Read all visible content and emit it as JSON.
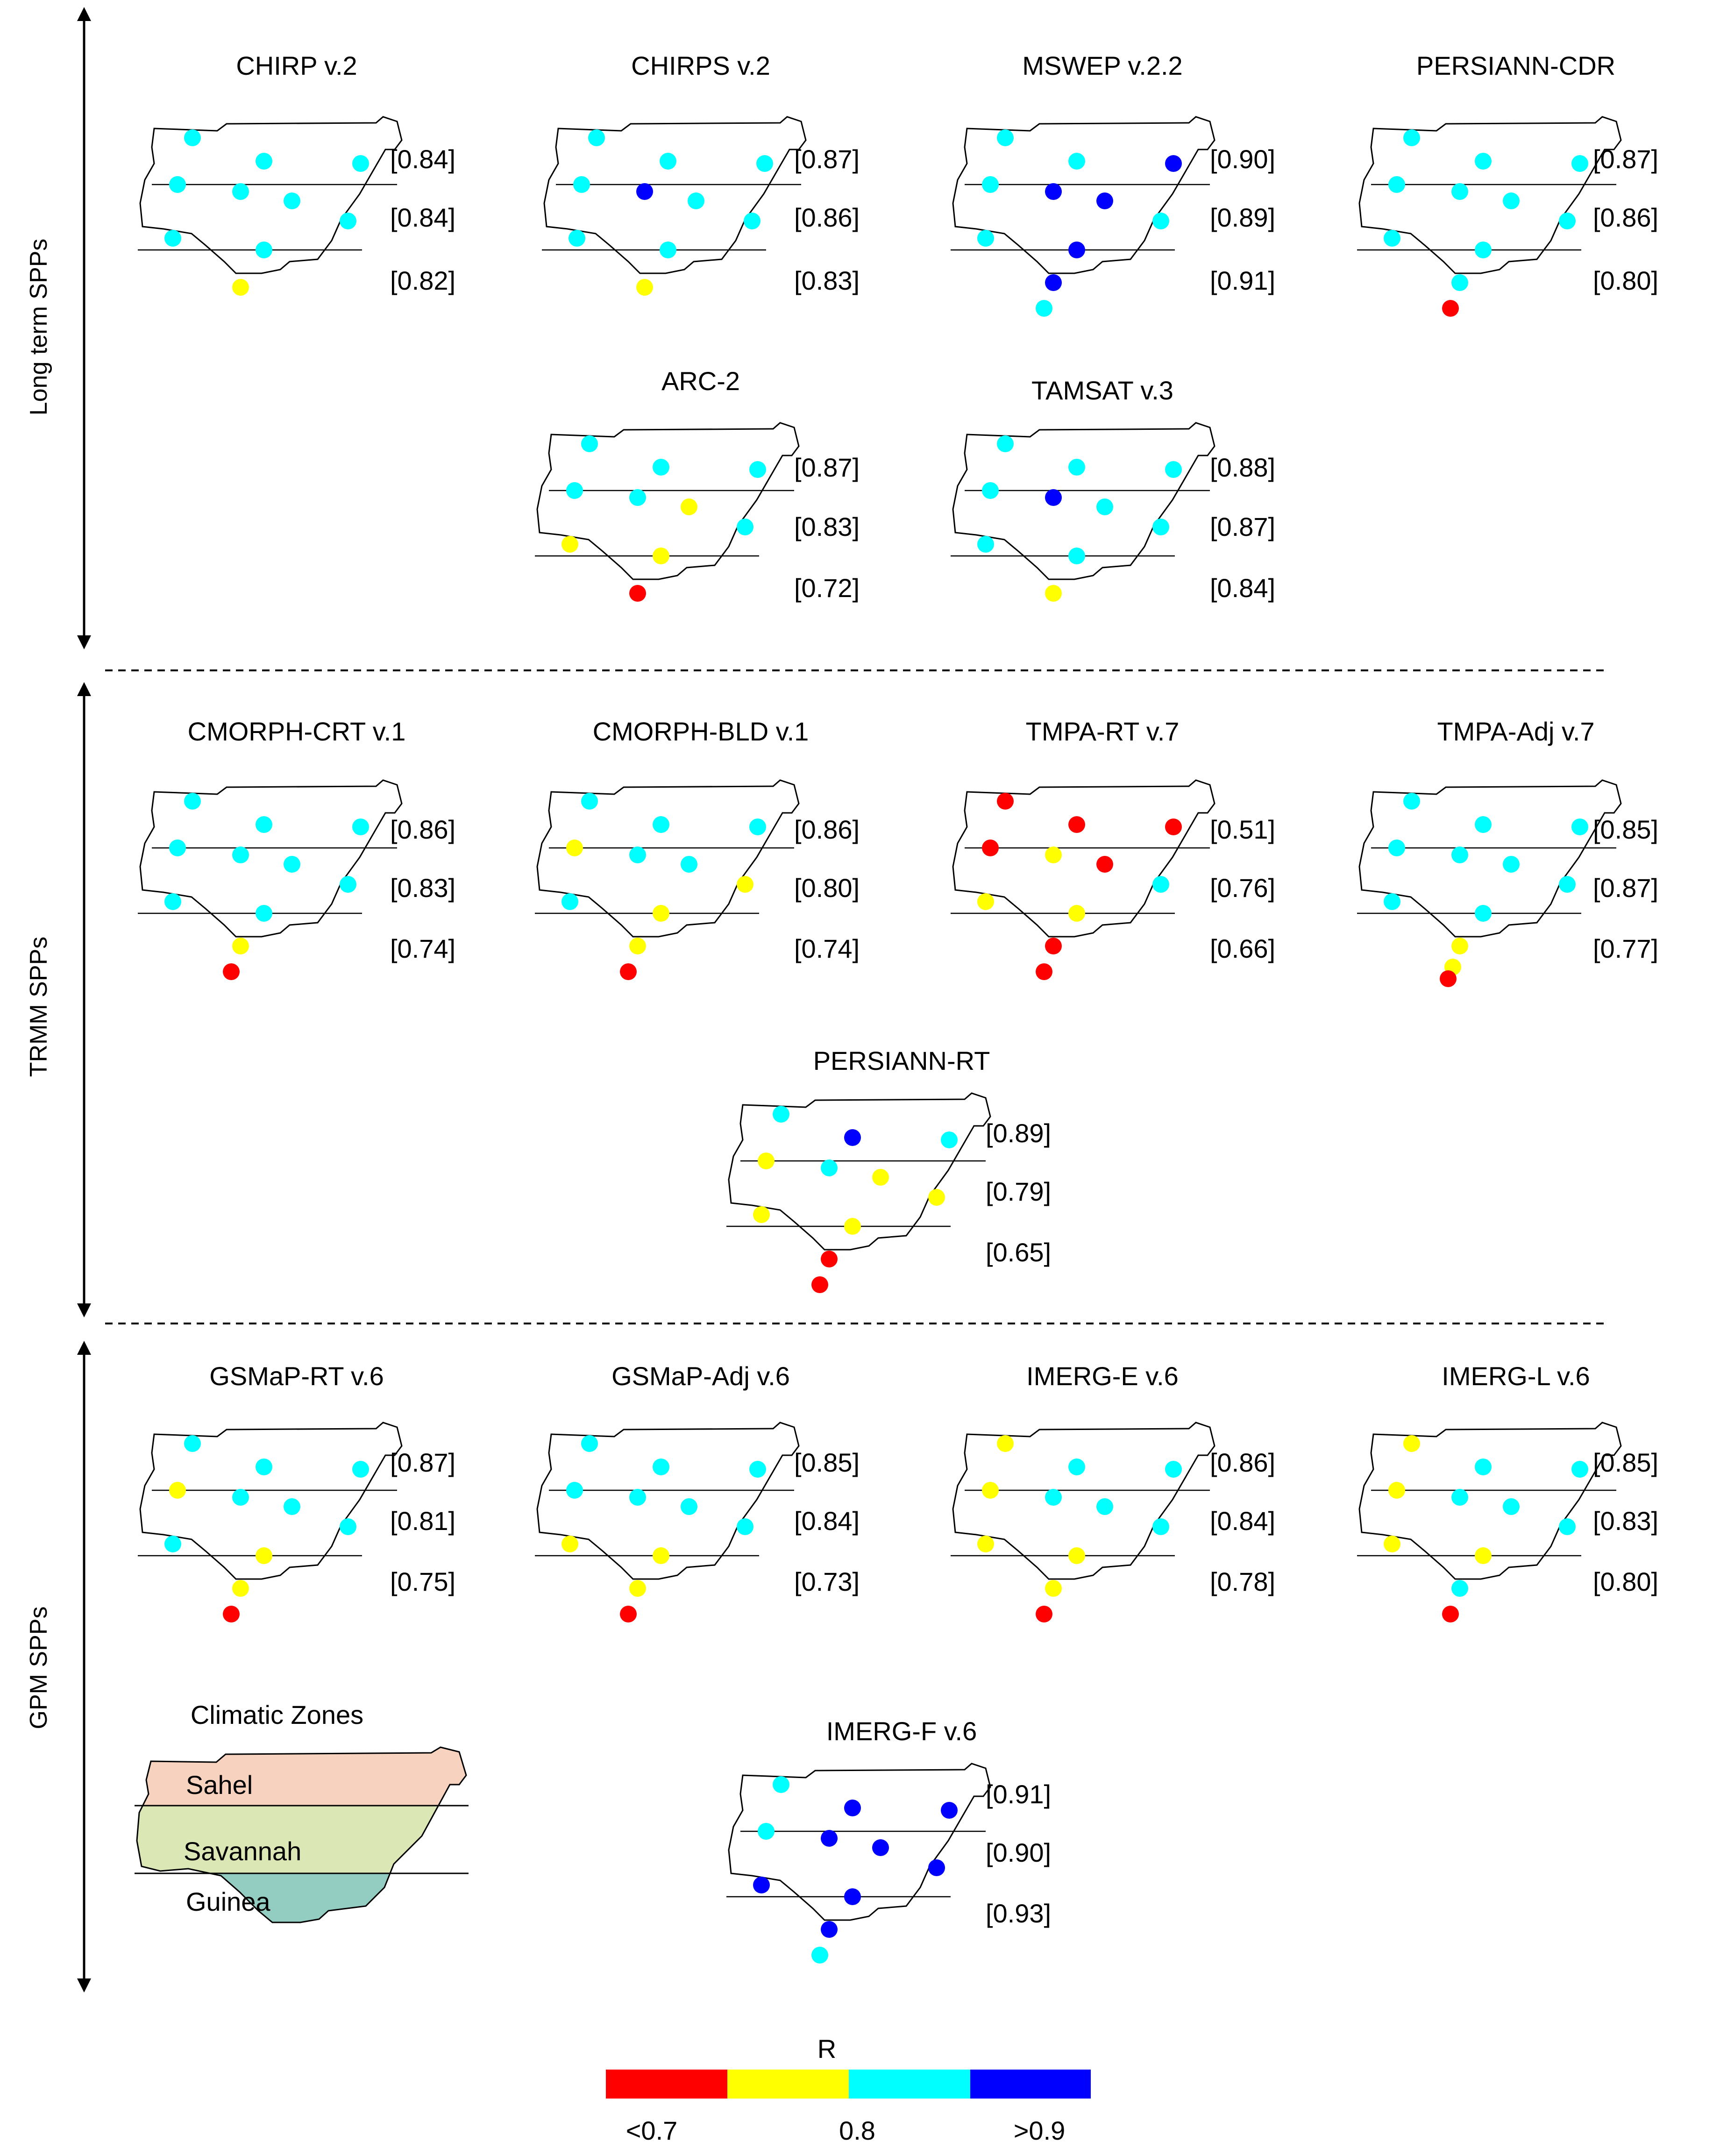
{
  "groups": [
    {
      "label": "Long term SPPs"
    },
    {
      "label": "TRMM SPPs"
    },
    {
      "label": "GPM SPPs"
    }
  ],
  "colors": {
    "lt07": "#ff0000",
    "lt08": "#ffff00",
    "lt09": "#00ffff",
    "gt09": "#0000ff"
  },
  "legend": {
    "title": "Climatic Zones",
    "zones": [
      {
        "name": "Sahel",
        "color": "#f7d3bf"
      },
      {
        "name": "Savannah",
        "color": "#dbe7b5"
      },
      {
        "name": "Guinea",
        "color": "#93cdc1"
      }
    ]
  },
  "colorbar": {
    "title": "R",
    "labels": [
      "<0.7",
      "0.8",
      ">0.9"
    ],
    "colors": [
      "#ff0000",
      "#ffff00",
      "#00ffff",
      "#0000ff"
    ]
  },
  "chart_data": [
    {
      "type": "scatter",
      "title": "CHIRP v.2",
      "zone_r": [
        "[0.84]",
        "[0.84]",
        "[0.82]"
      ],
      "stations": [
        "lt09",
        "lt09",
        "lt09",
        "lt09",
        "lt09",
        "lt09",
        "lt09",
        "lt09",
        "lt09",
        "lt08"
      ]
    },
    {
      "type": "scatter",
      "title": "CHIRPS v.2",
      "zone_r": [
        "[0.87]",
        "[0.86]",
        "[0.83]"
      ],
      "stations": [
        "lt09",
        "lt09",
        "lt09",
        "lt09",
        "gt09",
        "lt09",
        "lt09",
        "lt09",
        "lt09",
        "lt08"
      ]
    },
    {
      "type": "scatter",
      "title": "MSWEP v.2.2",
      "zone_r": [
        "[0.90]",
        "[0.89]",
        "[0.91]"
      ],
      "stations": [
        "lt09",
        "lt09",
        "gt09",
        "lt09",
        "gt09",
        "gt09",
        "lt09",
        "lt09",
        "gt09",
        "gt09",
        "lt09"
      ]
    },
    {
      "type": "scatter",
      "title": "PERSIANN-CDR",
      "zone_r": [
        "[0.87]",
        "[0.86]",
        "[0.80]"
      ],
      "stations": [
        "lt09",
        "lt09",
        "lt09",
        "lt09",
        "lt09",
        "lt09",
        "lt09",
        "lt09",
        "lt09",
        "lt09",
        "lt07"
      ]
    },
    {
      "type": "scatter",
      "title": "ARC-2",
      "zone_r": [
        "[0.87]",
        "[0.83]",
        "[0.72]"
      ],
      "stations": [
        "lt09",
        "lt09",
        "lt09",
        "lt09",
        "lt09",
        "lt08",
        "lt09",
        "lt08",
        "lt08",
        "lt07"
      ]
    },
    {
      "type": "scatter",
      "title": "TAMSAT v.3",
      "zone_r": [
        "[0.88]",
        "[0.87]",
        "[0.84]"
      ],
      "stations": [
        "lt09",
        "lt09",
        "lt09",
        "lt09",
        "gt09",
        "lt09",
        "lt09",
        "lt09",
        "lt09",
        "lt08"
      ]
    },
    {
      "type": "scatter",
      "title": "CMORPH-CRT v.1",
      "zone_r": [
        "[0.86]",
        "[0.83]",
        "[0.74]"
      ],
      "stations": [
        "lt09",
        "lt09",
        "lt09",
        "lt09",
        "lt09",
        "lt09",
        "lt09",
        "lt09",
        "lt09",
        "lt08",
        "lt07"
      ]
    },
    {
      "type": "scatter",
      "title": "CMORPH-BLD v.1",
      "zone_r": [
        "[0.86]",
        "[0.80]",
        "[0.74]"
      ],
      "stations": [
        "lt09",
        "lt09",
        "lt09",
        "lt08",
        "lt09",
        "lt09",
        "lt08",
        "lt09",
        "lt08",
        "lt08",
        "lt07"
      ]
    },
    {
      "type": "scatter",
      "title": "TMPA-RT v.7",
      "zone_r": [
        "[0.51]",
        "[0.76]",
        "[0.66]"
      ],
      "stations": [
        "lt07",
        "lt07",
        "lt07",
        "lt07",
        "lt08",
        "lt07",
        "lt09",
        "lt08",
        "lt08",
        "lt07",
        "lt07"
      ]
    },
    {
      "type": "scatter",
      "title": "TMPA-Adj v.7",
      "zone_r": [
        "[0.85]",
        "[0.87]",
        "[0.77]"
      ],
      "stations": [
        "lt09",
        "lt09",
        "lt09",
        "lt09",
        "lt09",
        "lt09",
        "lt09",
        "lt09",
        "lt09",
        "lt08",
        "lt08",
        "lt07"
      ]
    },
    {
      "type": "scatter",
      "title": "PERSIANN-RT",
      "zone_r": [
        "[0.89]",
        "[0.79]",
        "[0.65]"
      ],
      "stations": [
        "lt09",
        "gt09",
        "lt09",
        "lt08",
        "lt09",
        "lt08",
        "lt08",
        "lt08",
        "lt08",
        "lt07",
        "lt07"
      ]
    },
    {
      "type": "scatter",
      "title": "GSMaP-RT v.6",
      "zone_r": [
        "[0.87]",
        "[0.81]",
        "[0.75]"
      ],
      "stations": [
        "lt09",
        "lt09",
        "lt09",
        "lt08",
        "lt09",
        "lt09",
        "lt09",
        "lt09",
        "lt08",
        "lt08",
        "lt07"
      ]
    },
    {
      "type": "scatter",
      "title": "GSMaP-Adj v.6",
      "zone_r": [
        "[0.85]",
        "[0.84]",
        "[0.73]"
      ],
      "stations": [
        "lt09",
        "lt09",
        "lt09",
        "lt09",
        "lt09",
        "lt09",
        "lt09",
        "lt08",
        "lt08",
        "lt08",
        "lt07"
      ]
    },
    {
      "type": "scatter",
      "title": "IMERG-E v.6",
      "zone_r": [
        "[0.86]",
        "[0.84]",
        "[0.78]"
      ],
      "stations": [
        "lt08",
        "lt09",
        "lt09",
        "lt08",
        "lt09",
        "lt09",
        "lt09",
        "lt08",
        "lt08",
        "lt08",
        "lt07"
      ]
    },
    {
      "type": "scatter",
      "title": "IMERG-L v.6",
      "zone_r": [
        "[0.85]",
        "[0.83]",
        "[0.80]"
      ],
      "stations": [
        "lt08",
        "lt09",
        "lt09",
        "lt08",
        "lt09",
        "lt09",
        "lt09",
        "lt08",
        "lt08",
        "lt09",
        "lt07"
      ]
    },
    {
      "type": "scatter",
      "title": "IMERG-F v.6",
      "zone_r": [
        "[0.91]",
        "[0.90]",
        "[0.93]"
      ],
      "stations": [
        "lt09",
        "gt09",
        "gt09",
        "lt09",
        "gt09",
        "gt09",
        "gt09",
        "gt09",
        "gt09",
        "gt09",
        "lt09"
      ]
    }
  ]
}
